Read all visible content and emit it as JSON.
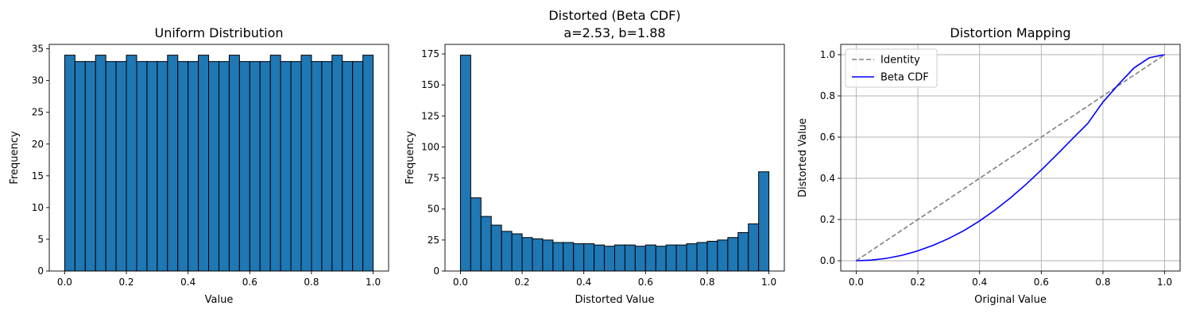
{
  "chart_data": [
    {
      "type": "bar",
      "title": "Uniform Distribution",
      "xlabel": "Value",
      "ylabel": "Frequency",
      "xlim": [
        -0.05,
        1.05
      ],
      "ylim": [
        0,
        35.7
      ],
      "xticks": [
        "0.0",
        "0.2",
        "0.4",
        "0.6",
        "0.8",
        "1.0"
      ],
      "yticks": [
        "0",
        "5",
        "10",
        "15",
        "20",
        "25",
        "30",
        "35"
      ],
      "bin_edges": [
        0,
        1
      ],
      "bins": 30,
      "values": [
        34,
        33,
        33,
        34,
        33,
        33,
        34,
        33,
        33,
        33,
        34,
        33,
        33,
        34,
        33,
        33,
        34,
        33,
        33,
        33,
        34,
        33,
        33,
        34,
        33,
        33,
        34,
        33,
        33,
        34
      ],
      "bar_color": "#1f77b4",
      "edge_color": "#000000"
    },
    {
      "type": "bar",
      "title": "Distorted (Beta CDF)",
      "subtitle": "a=2.53, b=1.88",
      "xlabel": "Distorted Value",
      "ylabel": "Frequency",
      "xlim": [
        -0.05,
        1.05
      ],
      "ylim": [
        0,
        182.7
      ],
      "xticks": [
        "0.0",
        "0.2",
        "0.4",
        "0.6",
        "0.8",
        "1.0"
      ],
      "yticks": [
        "0",
        "25",
        "50",
        "75",
        "100",
        "125",
        "150",
        "175"
      ],
      "bin_edges": [
        0,
        1
      ],
      "bins": 30,
      "values": [
        174,
        59,
        44,
        37,
        32,
        30,
        27,
        26,
        25,
        23,
        23,
        22,
        22,
        21,
        20,
        21,
        21,
        20,
        21,
        20,
        21,
        21,
        22,
        23,
        24,
        25,
        27,
        31,
        38,
        80
      ],
      "bar_color": "#1f77b4",
      "edge_color": "#000000"
    },
    {
      "type": "line",
      "title": "Distortion Mapping",
      "xlabel": "Original Value",
      "ylabel": "Distorted Value",
      "xlim": [
        -0.05,
        1.05
      ],
      "ylim": [
        -0.05,
        1.05
      ],
      "xticks": [
        "0.0",
        "0.2",
        "0.4",
        "0.6",
        "0.8",
        "1.0"
      ],
      "yticks": [
        "0.0",
        "0.2",
        "0.4",
        "0.6",
        "0.8",
        "1.0"
      ],
      "grid": true,
      "legend_position": "top-left",
      "series": [
        {
          "name": "Identity",
          "color": "#808080",
          "dash": true,
          "x": [
            0,
            1
          ],
          "y": [
            0,
            1
          ]
        },
        {
          "name": "Beta CDF",
          "color": "#0000ff",
          "dash": false,
          "x": [
            0,
            0.05,
            0.1,
            0.15,
            0.2,
            0.25,
            0.3,
            0.35,
            0.4,
            0.45,
            0.5,
            0.55,
            0.6,
            0.65,
            0.7,
            0.75,
            0.8,
            0.85,
            0.9,
            0.95,
            1.0
          ],
          "y": [
            0,
            0.003,
            0.012,
            0.027,
            0.048,
            0.075,
            0.108,
            0.147,
            0.193,
            0.246,
            0.305,
            0.37,
            0.44,
            0.514,
            0.59,
            0.665,
            0.77,
            0.855,
            0.935,
            0.985,
            1.0
          ]
        }
      ]
    }
  ]
}
